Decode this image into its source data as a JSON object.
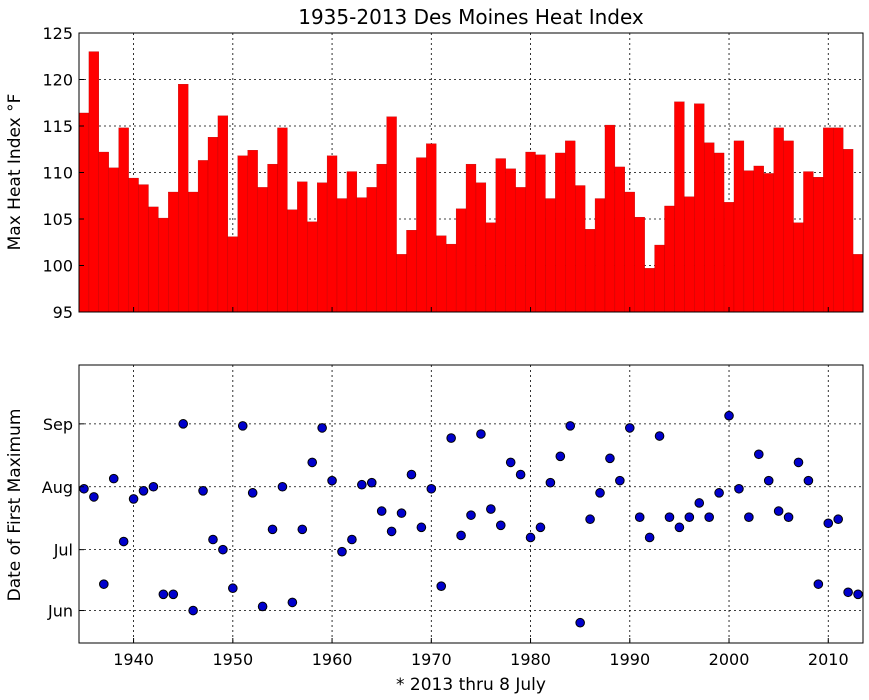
{
  "chart_data": [
    {
      "type": "bar",
      "title": "1935-2013 Des Moines Heat Index",
      "ylabel": "Max Heat Index °F",
      "xlabel": "",
      "ylim": [
        95,
        125
      ],
      "xlim": [
        1934.5,
        2013.5
      ],
      "yticks": [
        "95",
        "100",
        "105",
        "110",
        "115",
        "120",
        "125"
      ],
      "grid": true,
      "bar_color": "#ff0000",
      "x": [
        1935,
        1936,
        1937,
        1938,
        1939,
        1940,
        1941,
        1942,
        1943,
        1944,
        1945,
        1946,
        1947,
        1948,
        1949,
        1950,
        1951,
        1952,
        1953,
        1954,
        1955,
        1956,
        1957,
        1958,
        1959,
        1960,
        1961,
        1962,
        1963,
        1964,
        1965,
        1966,
        1967,
        1968,
        1969,
        1970,
        1971,
        1972,
        1973,
        1974,
        1975,
        1976,
        1977,
        1978,
        1979,
        1980,
        1981,
        1982,
        1983,
        1984,
        1985,
        1986,
        1987,
        1988,
        1989,
        1990,
        1991,
        1992,
        1993,
        1994,
        1995,
        1996,
        1997,
        1998,
        1999,
        2000,
        2001,
        2002,
        2003,
        2004,
        2005,
        2006,
        2007,
        2008,
        2009,
        2010,
        2011,
        2012,
        2013
      ],
      "values": [
        116.4,
        123,
        112.2,
        110.5,
        114.8,
        109.4,
        108.7,
        106.3,
        105.1,
        107.9,
        119.5,
        107.9,
        111.3,
        113.8,
        116.1,
        103.1,
        111.8,
        112.4,
        108.4,
        110.9,
        114.8,
        106,
        109,
        104.7,
        108.9,
        111.8,
        107.2,
        110.1,
        107.3,
        108.4,
        110.9,
        116,
        101.2,
        103.8,
        111.6,
        113.1,
        103.2,
        102.3,
        106.1,
        110.9,
        108.9,
        104.6,
        111.5,
        110.4,
        108.4,
        112.2,
        111.9,
        107.2,
        112.1,
        113.4,
        108.6,
        103.9,
        107.2,
        115.1,
        110.6,
        107.9,
        105.2,
        99.7,
        102.2,
        106.4,
        117.6,
        107.4,
        117.4,
        113.2,
        112.1,
        106.8,
        113.4,
        110.2,
        110.7,
        109.9,
        114.8,
        113.4,
        104.6,
        110.1,
        109.5,
        114.8,
        114.8,
        112.5,
        101.2
      ]
    },
    {
      "type": "scatter",
      "title": "",
      "ylabel": "Date of First Maximum",
      "xlabel": "* 2013 thru 8 July",
      "xlim": [
        1934.5,
        2013.5
      ],
      "xticks": [
        1940,
        1950,
        1960,
        1970,
        1980,
        1990,
        2000,
        2010
      ],
      "yticks": [
        "Jun",
        "Jul",
        "Aug",
        "Sep"
      ],
      "ylim": [
        "May 16",
        "Sep 30"
      ],
      "grid": true,
      "marker_color": "#0000cc",
      "x": [
        1935,
        1936,
        1937,
        1938,
        1939,
        1940,
        1941,
        1942,
        1943,
        1944,
        1945,
        1946,
        1947,
        1948,
        1949,
        1950,
        1951,
        1952,
        1953,
        1954,
        1955,
        1956,
        1957,
        1958,
        1959,
        1960,
        1961,
        1962,
        1963,
        1964,
        1965,
        1966,
        1967,
        1968,
        1969,
        1970,
        1971,
        1972,
        1973,
        1974,
        1975,
        1976,
        1977,
        1978,
        1979,
        1980,
        1981,
        1982,
        1983,
        1984,
        1985,
        1986,
        1987,
        1988,
        1989,
        1990,
        1991,
        1992,
        1993,
        1994,
        1995,
        1996,
        1997,
        1998,
        1999,
        2000,
        2001,
        2002,
        2003,
        2004,
        2005,
        2006,
        2007,
        2008,
        2009,
        2010,
        2011,
        2012,
        2013
      ],
      "dates": [
        "Jul 31",
        "Jul 27",
        "Jun 14",
        "Aug 5",
        "Jul 5",
        "Jul 26",
        "Jul 30",
        "Aug 1",
        "Jun 9",
        "Jun 9",
        "Sep 1",
        "Jun 1",
        "Jul 30",
        "Jul 6",
        "Jul 1",
        "Jun 12",
        "Aug 31",
        "Jul 29",
        "Jun 3",
        "Jul 11",
        "Aug 1",
        "Jun 5",
        "Jul 11",
        "Aug 13",
        "Aug 30",
        "Aug 4",
        "Jun 30",
        "Jul 6",
        "Aug 2",
        "Aug 3",
        "Jul 20",
        "Jul 10",
        "Jul 19",
        "Aug 7",
        "Jul 12",
        "Jul 31",
        "Jun 13",
        "Aug 25",
        "Jul 8",
        "Jul 18",
        "Aug 27",
        "Jul 21",
        "Jul 13",
        "Aug 13",
        "Aug 7",
        "Jul 7",
        "Jul 12",
        "Aug 3",
        "Aug 16",
        "Aug 31",
        "May 26",
        "Jul 16",
        "Jul 29",
        "Aug 15",
        "Aug 4",
        "Aug 30",
        "Jul 17",
        "Jul 7",
        "Aug 26",
        "Jul 17",
        "Jul 12",
        "Jul 17",
        "Jul 24",
        "Jul 17",
        "Jul 29",
        "Sep 5",
        "Jul 31",
        "Jul 17",
        "Aug 17",
        "Aug 4",
        "Jul 20",
        "Jul 17",
        "Aug 13",
        "Aug 4",
        "Jun 14",
        "Jul 14",
        "Jul 16",
        "Jun 10",
        "Jun 9"
      ]
    }
  ]
}
